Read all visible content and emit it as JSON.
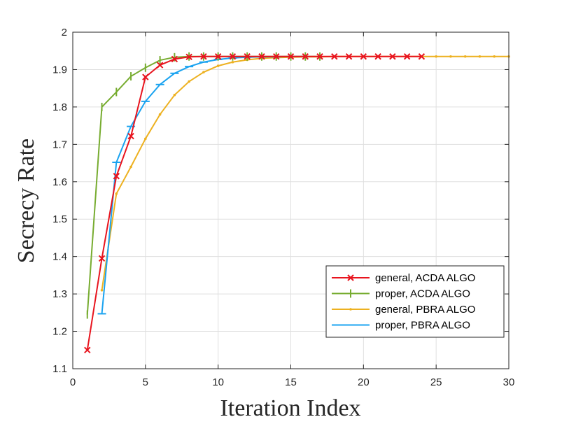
{
  "chart_data": {
    "type": "line",
    "title": "",
    "xlabel": "Iteration Index",
    "ylabel": "Secrecy Rate",
    "xlim": [
      0,
      30
    ],
    "ylim": [
      1.1,
      2.0
    ],
    "xticks": [
      0,
      5,
      10,
      15,
      20,
      25,
      30
    ],
    "yticks": [
      1.1,
      1.2,
      1.3,
      1.4,
      1.5,
      1.6,
      1.7,
      1.8,
      1.9,
      2.0
    ],
    "xtick_labels": [
      "0",
      "5",
      "10",
      "15",
      "20",
      "25",
      "30"
    ],
    "ytick_labels": [
      "1.1",
      "1.2",
      "1.3",
      "1.4",
      "1.5",
      "1.6",
      "1.7",
      "1.8",
      "1.9",
      "2"
    ],
    "grid": true,
    "legend_position": "bottom-right",
    "series": [
      {
        "name": "general, ACDA ALGO",
        "color": "#e8141e",
        "marker": "x",
        "x": [
          1,
          2,
          3,
          4,
          5,
          6,
          7,
          8,
          9,
          10,
          11,
          12,
          13,
          14,
          15,
          16,
          17,
          18,
          19,
          20,
          21,
          22,
          23,
          24
        ],
        "y": [
          1.15,
          1.395,
          1.615,
          1.722,
          1.88,
          1.912,
          1.928,
          1.934,
          1.935,
          1.935,
          1.935,
          1.935,
          1.935,
          1.935,
          1.935,
          1.935,
          1.935,
          1.935,
          1.935,
          1.935,
          1.935,
          1.935,
          1.935,
          1.935
        ]
      },
      {
        "name": "proper, ACDA ALGO",
        "color": "#77ac30",
        "marker": "vbar",
        "x": [
          1,
          2,
          3,
          4,
          5,
          6,
          7,
          8,
          9,
          10,
          11,
          12,
          13,
          14,
          15,
          16,
          17
        ],
        "y": [
          1.245,
          1.8,
          1.84,
          1.882,
          1.905,
          1.925,
          1.933,
          1.935,
          1.935,
          1.935,
          1.935,
          1.935,
          1.935,
          1.935,
          1.935,
          1.935,
          1.935
        ]
      },
      {
        "name": "general, PBRA ALGO",
        "color": "#edb120",
        "marker": "dot",
        "x": [
          2,
          3,
          4,
          5,
          6,
          7,
          8,
          9,
          10,
          11,
          12,
          13,
          14,
          15,
          16,
          17,
          18,
          19,
          20,
          21,
          22,
          23,
          24,
          25,
          26,
          27,
          28,
          29,
          30
        ],
        "y": [
          1.31,
          1.568,
          1.64,
          1.715,
          1.78,
          1.832,
          1.868,
          1.893,
          1.91,
          1.92,
          1.926,
          1.93,
          1.932,
          1.933,
          1.934,
          1.934,
          1.935,
          1.935,
          1.935,
          1.935,
          1.935,
          1.935,
          1.935,
          1.935,
          1.935,
          1.935,
          1.935,
          1.935,
          1.935
        ]
      },
      {
        "name": "proper, PBRA ALGO",
        "color": "#1aa3f0",
        "marker": "hbar",
        "x": [
          2,
          3,
          4,
          5,
          6,
          7,
          8,
          9,
          10,
          11,
          12,
          13,
          14,
          15,
          16
        ],
        "y": [
          1.247,
          1.652,
          1.748,
          1.815,
          1.86,
          1.89,
          1.908,
          1.92,
          1.927,
          1.931,
          1.933,
          1.934,
          1.934,
          1.935,
          1.935
        ]
      }
    ]
  }
}
